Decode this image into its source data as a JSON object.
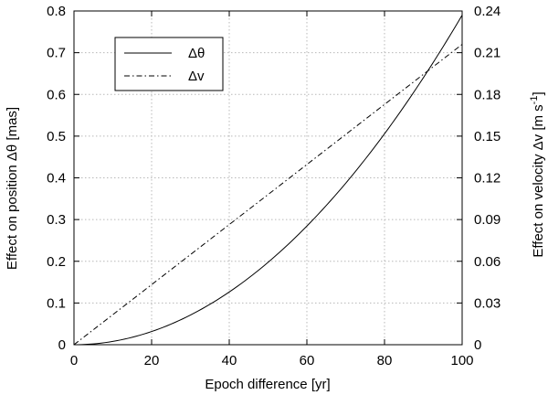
{
  "chart_data": {
    "type": "line",
    "xlabel": "Epoch difference [yr]",
    "ylabel_left": "Effect on position Δθ [mas]",
    "ylabel_right_main": "Effect on velocity Δv [m s",
    "ylabel_right_sup": "-1",
    "ylabel_right_end": "]",
    "xlim": [
      0,
      100
    ],
    "ylim_left": [
      0,
      0.8
    ],
    "ylim_right": [
      0,
      0.24
    ],
    "x_ticks": [
      "0",
      "20",
      "40",
      "60",
      "80",
      "100"
    ],
    "y_ticks_left": [
      "0",
      "0.1",
      "0.2",
      "0.3",
      "0.4",
      "0.5",
      "0.6",
      "0.7",
      "0.8"
    ],
    "y_ticks_right": [
      "0",
      "0.03",
      "0.06",
      "0.09",
      "0.12",
      "0.15",
      "0.18",
      "0.21",
      "0.24"
    ],
    "grid": true,
    "legend_position": "top-left",
    "series": [
      {
        "name": "Δθ",
        "axis": "left",
        "style": "solid",
        "x": [
          0,
          10,
          20,
          30,
          40,
          50,
          60,
          70,
          80,
          90,
          100
        ],
        "y": [
          0,
          0.008,
          0.032,
          0.071,
          0.126,
          0.198,
          0.285,
          0.387,
          0.506,
          0.64,
          0.79
        ]
      },
      {
        "name": "Δv",
        "axis": "right",
        "style": "dashdot",
        "x": [
          0,
          100
        ],
        "y": [
          0,
          0.216
        ]
      }
    ]
  }
}
